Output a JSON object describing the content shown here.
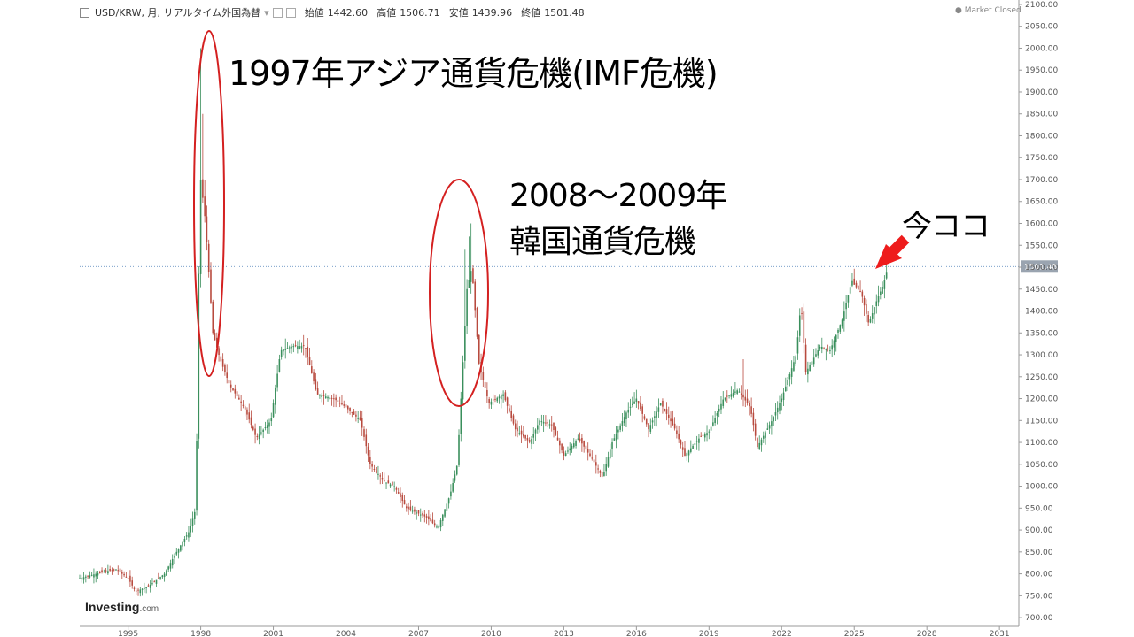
{
  "header": {
    "symbol": "USD/KRW, 月, リアルタイム外国為替",
    "open_label": "始値",
    "open": "1442.60",
    "high_label": "高値",
    "high": "1506.71",
    "low_label": "安値",
    "low": "1439.96",
    "close_label": "終値",
    "close": "1501.48",
    "market_status": "Market Closed"
  },
  "brand": {
    "name": "Investing",
    "suffix": ".com"
  },
  "annotations": {
    "crisis_1997": "1997年アジア通貨危機(IMF危機)",
    "crisis_2008_line1": "2008～2009年",
    "crisis_2008_line2": "韓国通貨危機",
    "now_label": "今ココ"
  },
  "colors": {
    "up": "#3a8f5c",
    "down": "#b84a3e",
    "marker": "#d42020",
    "arrow": "#ee1c1c"
  },
  "chart_data": {
    "type": "candlestick",
    "interval": "monthly",
    "x_ticks": [
      "1995",
      "1998",
      "2001",
      "2004",
      "2007",
      "2010",
      "2013",
      "2016",
      "2019",
      "2022",
      "2025",
      "2028",
      "2031"
    ],
    "x_range": [
      1993,
      2031.8
    ],
    "y_ticks": [
      "700.00",
      "750.00",
      "800.00",
      "850.00",
      "900.00",
      "950.00",
      "1000.00",
      "1050.00",
      "1100.00",
      "1150.00",
      "1200.00",
      "1250.00",
      "1300.00",
      "1350.00",
      "1400.00",
      "1450.00",
      "1500.00",
      "1550.00",
      "1600.00",
      "1650.00",
      "1700.00",
      "1750.00",
      "1800.00",
      "1850.00",
      "1900.00",
      "1950.00",
      "2000.00",
      "2050.00",
      "2100.00"
    ],
    "y_range": [
      680,
      2110
    ],
    "last_price": "1501.48",
    "price_path": [
      [
        1993.0,
        790
      ],
      [
        1994.0,
        805
      ],
      [
        1994.5,
        810
      ],
      [
        1995.0,
        790
      ],
      [
        1995.3,
        760
      ],
      [
        1995.8,
        770
      ],
      [
        1996.5,
        800
      ],
      [
        1997.0,
        850
      ],
      [
        1997.5,
        895
      ],
      [
        1997.8,
        950
      ],
      [
        1997.92,
        1500
      ],
      [
        1998.0,
        1700
      ],
      [
        1998.2,
        1600
      ],
      [
        1998.5,
        1350
      ],
      [
        1998.8,
        1290
      ],
      [
        1999.2,
        1230
      ],
      [
        1999.8,
        1180
      ],
      [
        2000.3,
        1110
      ],
      [
        2000.9,
        1150
      ],
      [
        2001.3,
        1310
      ],
      [
        2001.8,
        1320
      ],
      [
        2002.3,
        1320
      ],
      [
        2002.8,
        1210
      ],
      [
        2003.5,
        1200
      ],
      [
        2004.0,
        1180
      ],
      [
        2004.6,
        1150
      ],
      [
        2005.0,
        1050
      ],
      [
        2005.6,
        1010
      ],
      [
        2006.0,
        1000
      ],
      [
        2006.5,
        950
      ],
      [
        2007.3,
        930
      ],
      [
        2007.8,
        905
      ],
      [
        2008.3,
        980
      ],
      [
        2008.6,
        1050
      ],
      [
        2008.8,
        1250
      ],
      [
        2009.0,
        1450
      ],
      [
        2009.2,
        1500
      ],
      [
        2009.5,
        1280
      ],
      [
        2009.9,
        1190
      ],
      [
        2010.5,
        1210
      ],
      [
        2011.0,
        1130
      ],
      [
        2011.6,
        1100
      ],
      [
        2012.0,
        1150
      ],
      [
        2012.5,
        1140
      ],
      [
        2013.0,
        1070
      ],
      [
        2013.6,
        1110
      ],
      [
        2014.2,
        1060
      ],
      [
        2014.6,
        1020
      ],
      [
        2015.0,
        1100
      ],
      [
        2015.6,
        1170
      ],
      [
        2016.0,
        1200
      ],
      [
        2016.5,
        1130
      ],
      [
        2017.0,
        1190
      ],
      [
        2017.6,
        1130
      ],
      [
        2018.0,
        1070
      ],
      [
        2018.6,
        1110
      ],
      [
        2019.0,
        1125
      ],
      [
        2019.6,
        1200
      ],
      [
        2020.2,
        1220
      ],
      [
        2020.7,
        1180
      ],
      [
        2021.0,
        1090
      ],
      [
        2021.6,
        1150
      ],
      [
        2022.0,
        1200
      ],
      [
        2022.6,
        1300
      ],
      [
        2022.8,
        1420
      ],
      [
        2023.0,
        1260
      ],
      [
        2023.6,
        1320
      ],
      [
        2024.0,
        1310
      ],
      [
        2024.5,
        1380
      ],
      [
        2024.9,
        1470
      ],
      [
        2025.0,
        1460
      ],
      [
        2025.3,
        1440
      ],
      [
        2025.6,
        1370
      ],
      [
        2025.9,
        1420
      ],
      [
        2026.2,
        1460
      ],
      [
        2026.4,
        1501
      ]
    ],
    "spikes": [
      [
        1997.96,
        2000
      ],
      [
        1998.05,
        1850
      ],
      [
        1998.15,
        1700
      ],
      [
        1998.25,
        1620
      ],
      [
        2008.9,
        1540
      ],
      [
        2009.05,
        1570
      ],
      [
        2009.2,
        1600
      ],
      [
        2020.4,
        1290
      ]
    ]
  }
}
